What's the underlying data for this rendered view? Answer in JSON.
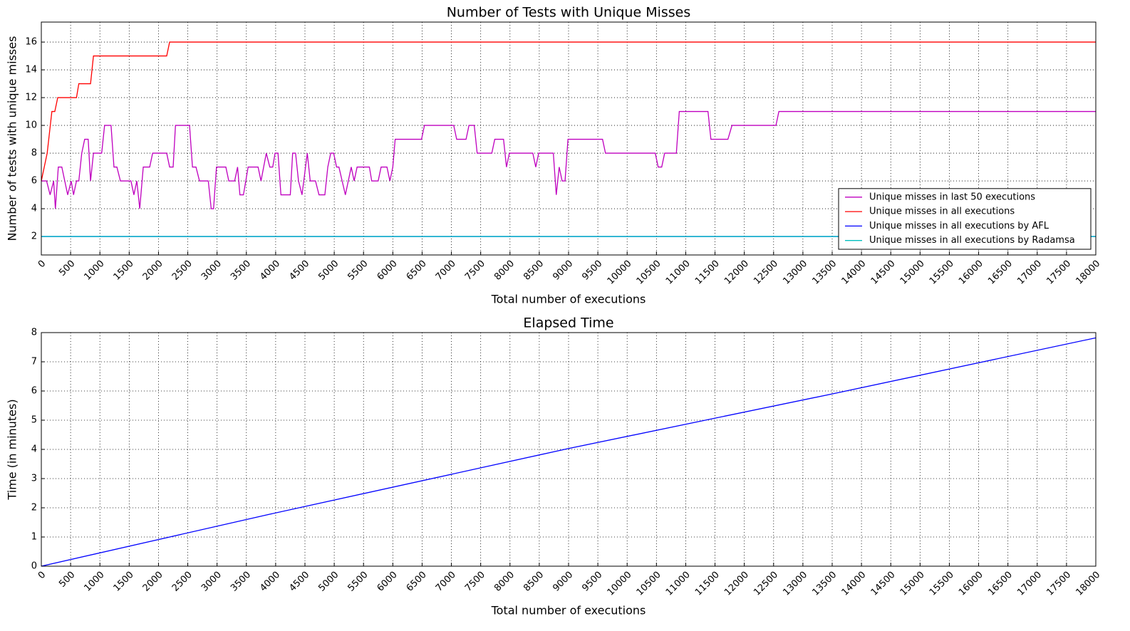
{
  "chart_data": [
    {
      "type": "line",
      "title": "Number of Tests with Unique Misses",
      "x_label": "Total number of executions",
      "y_label": "Number of tests with unique misses",
      "xlim": [
        0,
        18000
      ],
      "ylim": [
        0.67,
        17.44
      ],
      "xticks": [
        0,
        500,
        1000,
        1500,
        2000,
        2500,
        3000,
        3500,
        4000,
        4500,
        5000,
        5500,
        6000,
        6500,
        7000,
        7500,
        8000,
        8500,
        9000,
        9500,
        10000,
        10500,
        11000,
        11500,
        12000,
        12500,
        13000,
        13500,
        14000,
        14500,
        15000,
        15500,
        16000,
        16500,
        17000,
        17500,
        18000
      ],
      "yticks": [
        2,
        4,
        6,
        8,
        10,
        12,
        14,
        16
      ],
      "grid": true,
      "legend_loc": "lower right",
      "series": [
        {
          "name": "Unique misses in last 50 executions",
          "color": "#bf00bf",
          "x": [
            0,
            90,
            150,
            210,
            240,
            290,
            350,
            450,
            510,
            550,
            600,
            640,
            690,
            740,
            800,
            840,
            890,
            1030,
            1080,
            1190,
            1240,
            1290,
            1350,
            1530,
            1580,
            1630,
            1680,
            1740,
            1850,
            1900,
            2140,
            2190,
            2250,
            2290,
            2530,
            2580,
            2640,
            2700,
            2850,
            2900,
            2940,
            2990,
            3150,
            3200,
            3300,
            3350,
            3390,
            3450,
            3530,
            3700,
            3750,
            3840,
            3900,
            3950,
            3990,
            4040,
            4090,
            4250,
            4290,
            4340,
            4390,
            4450,
            4540,
            4590,
            4680,
            4740,
            4840,
            4890,
            4940,
            4990,
            5040,
            5080,
            5190,
            5290,
            5340,
            5390,
            5600,
            5640,
            5750,
            5800,
            5900,
            5950,
            6000,
            6040,
            6490,
            6540,
            7040,
            7090,
            7250,
            7300,
            7390,
            7440,
            7690,
            7740,
            7890,
            7940,
            7990,
            8390,
            8440,
            8490,
            8740,
            8790,
            8840,
            8890,
            8940,
            8990,
            9580,
            9630,
            10480,
            10530,
            10590,
            10640,
            10840,
            10890,
            11380,
            11430,
            11720,
            11790,
            12540,
            12590,
            18000
          ],
          "values": [
            6,
            6,
            5,
            6,
            4,
            7,
            7,
            5,
            6,
            5,
            6,
            6,
            8,
            9,
            9,
            6,
            8,
            8,
            10,
            10,
            7,
            7,
            6,
            6,
            5,
            6,
            4,
            7,
            7,
            8,
            8,
            7,
            7,
            10,
            10,
            7,
            7,
            6,
            6,
            4,
            4,
            7,
            7,
            6,
            6,
            7,
            5,
            5,
            7,
            7,
            6,
            8,
            7,
            7,
            8,
            8,
            5,
            5,
            8,
            8,
            6,
            5,
            8,
            6,
            6,
            5,
            5,
            7,
            8,
            8,
            7,
            7,
            5,
            7,
            6,
            7,
            7,
            6,
            6,
            7,
            7,
            6,
            7,
            9,
            9,
            10,
            10,
            9,
            9,
            10,
            10,
            8,
            8,
            9,
            9,
            7,
            8,
            8,
            7,
            8,
            8,
            5,
            7,
            6,
            6,
            9,
            9,
            8,
            8,
            7,
            7,
            8,
            8,
            11,
            11,
            9,
            9,
            10,
            10,
            11,
            11
          ]
        },
        {
          "name": "Unique misses in all executions",
          "color": "#ff0000",
          "x": [
            0,
            100,
            180,
            230,
            280,
            600,
            640,
            840,
            890,
            2140,
            2190,
            18000
          ],
          "values": [
            6,
            8,
            11,
            11,
            12,
            12,
            13,
            13,
            15,
            15,
            16,
            16
          ]
        },
        {
          "name": "Unique misses in all executions by AFL",
          "color": "#0000ff",
          "x": [
            0,
            18000
          ],
          "values": [
            2,
            2
          ]
        },
        {
          "name": "Unique misses in all executions by Radamsa",
          "color": "#00bfbf",
          "x": [
            0,
            18000
          ],
          "values": [
            2,
            2
          ]
        }
      ]
    },
    {
      "type": "line",
      "title": "Elapsed Time",
      "x_label": "Total number of executions",
      "y_label": "Time (in minutes)",
      "xlim": [
        0,
        18000
      ],
      "ylim": [
        0,
        8
      ],
      "xticks": [
        0,
        500,
        1000,
        1500,
        2000,
        2500,
        3000,
        3500,
        4000,
        4500,
        5000,
        5500,
        6000,
        6500,
        7000,
        7500,
        8000,
        8500,
        9000,
        9500,
        10000,
        10500,
        11000,
        11500,
        12000,
        12500,
        13000,
        13500,
        14000,
        14500,
        15000,
        15500,
        16000,
        16500,
        17000,
        17500,
        18000
      ],
      "yticks": [
        0,
        1,
        2,
        3,
        4,
        5,
        6,
        7,
        8
      ],
      "grid": true,
      "series": [
        {
          "color": "#0000ff",
          "x": [
            0,
            3900,
            9000,
            13500,
            18000
          ],
          "values": [
            0,
            1.78,
            4.03,
            5.9,
            7.82
          ]
        }
      ]
    }
  ]
}
